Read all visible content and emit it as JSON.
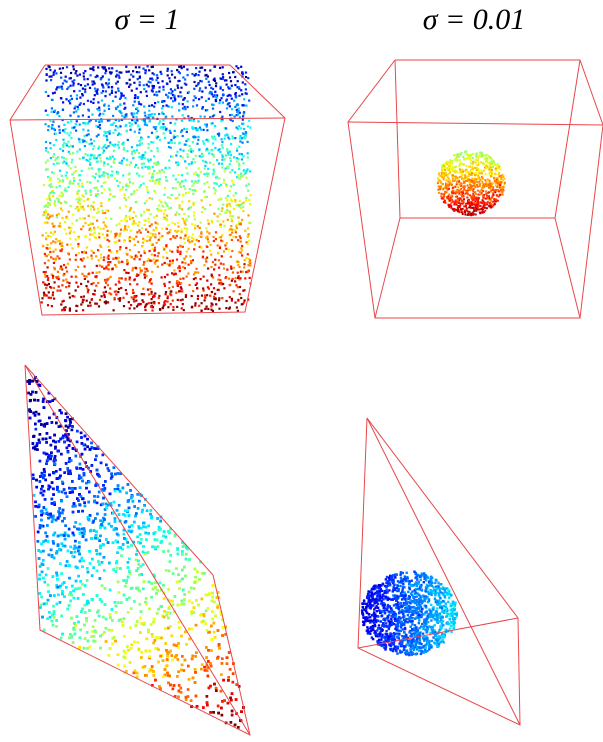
{
  "columns": [
    {
      "title": "σ = 1"
    },
    {
      "title": "σ = 0.01"
    }
  ]
}
